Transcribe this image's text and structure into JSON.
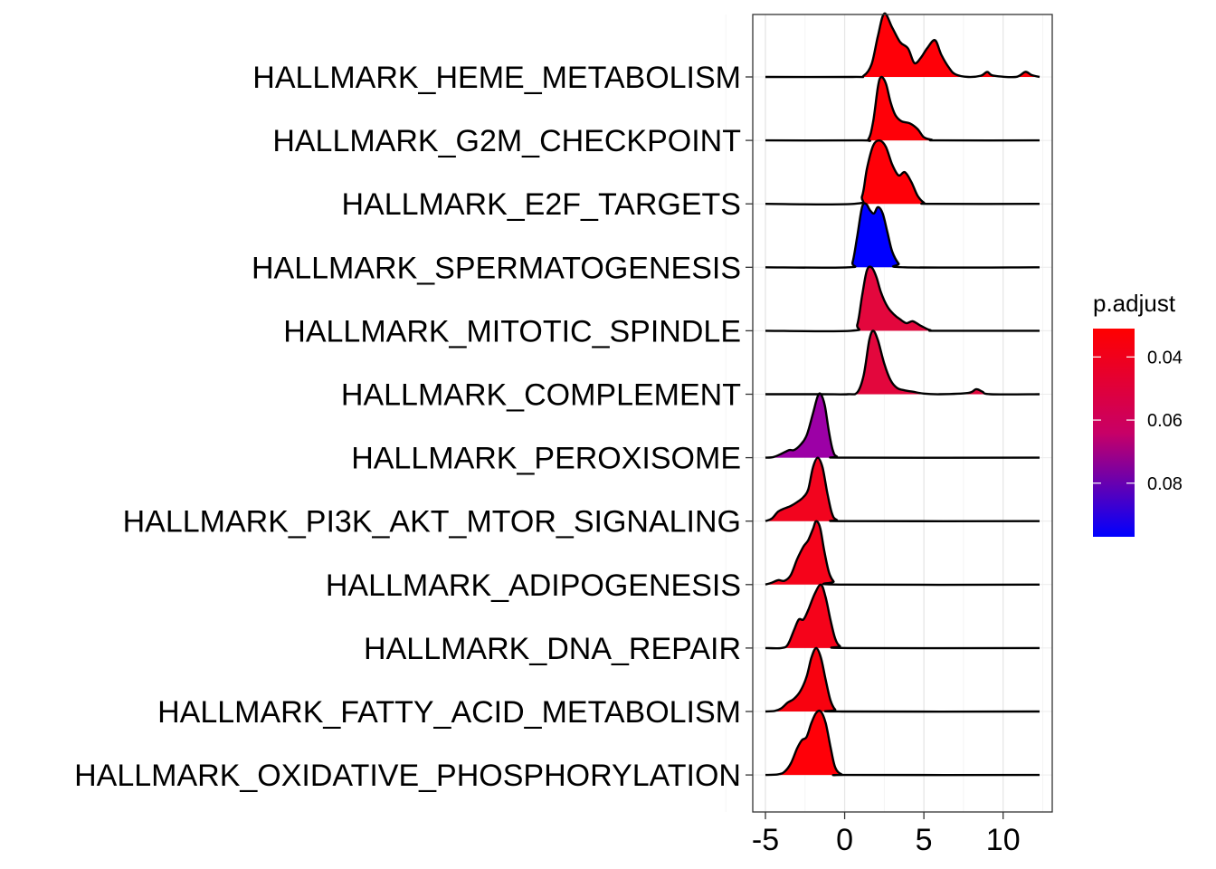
{
  "chart_data": {
    "type": "ridgeline",
    "x_ticks": [
      -5,
      0,
      5,
      10
    ],
    "xlim": [
      -5.8,
      13.1
    ],
    "series": [
      {
        "name": "HALLMARK_HEME_METABOLISM",
        "p_adjust": 0.032,
        "color": "#FF0008",
        "density": [
          [
            -5,
            0
          ],
          [
            0.5,
            0
          ],
          [
            1.2,
            0.02
          ],
          [
            1.7,
            0.2
          ],
          [
            2.1,
            0.65
          ],
          [
            2.5,
            1.0
          ],
          [
            3.0,
            0.78
          ],
          [
            3.5,
            0.55
          ],
          [
            4.0,
            0.45
          ],
          [
            4.4,
            0.22
          ],
          [
            4.8,
            0.3
          ],
          [
            5.2,
            0.45
          ],
          [
            5.7,
            0.58
          ],
          [
            6.1,
            0.35
          ],
          [
            6.6,
            0.14
          ],
          [
            7.0,
            0.04
          ],
          [
            7.8,
            0.0
          ],
          [
            8.6,
            0.02
          ],
          [
            9.0,
            0.08
          ],
          [
            9.4,
            0.02
          ],
          [
            10.8,
            0.0
          ],
          [
            11.4,
            0.08
          ],
          [
            11.8,
            0.03
          ],
          [
            12.3,
            0
          ]
        ]
      },
      {
        "name": "HALLMARK_G2M_CHECKPOINT",
        "p_adjust": 0.031,
        "color": "#FF0008",
        "density": [
          [
            -5,
            0
          ],
          [
            1.0,
            0
          ],
          [
            1.5,
            0.02
          ],
          [
            1.8,
            0.3
          ],
          [
            2.1,
            0.85
          ],
          [
            2.3,
            1.0
          ],
          [
            2.6,
            0.9
          ],
          [
            2.9,
            0.6
          ],
          [
            3.2,
            0.4
          ],
          [
            3.6,
            0.3
          ],
          [
            4.1,
            0.27
          ],
          [
            4.6,
            0.18
          ],
          [
            5.0,
            0.05
          ],
          [
            5.5,
            0.01
          ],
          [
            6.0,
            0
          ],
          [
            12.3,
            0
          ]
        ]
      },
      {
        "name": "HALLMARK_E2F_TARGETS",
        "p_adjust": 0.031,
        "color": "#FF0008",
        "density": [
          [
            -5,
            0
          ],
          [
            0.6,
            0
          ],
          [
            1.1,
            0.12
          ],
          [
            1.4,
            0.55
          ],
          [
            1.8,
            0.92
          ],
          [
            2.2,
            1.0
          ],
          [
            2.6,
            0.9
          ],
          [
            3.0,
            0.62
          ],
          [
            3.4,
            0.45
          ],
          [
            3.8,
            0.5
          ],
          [
            4.2,
            0.35
          ],
          [
            4.6,
            0.13
          ],
          [
            5.0,
            0.02
          ],
          [
            5.5,
            0
          ],
          [
            12.3,
            0
          ]
        ]
      },
      {
        "name": "HALLMARK_SPERMATOGENESIS",
        "p_adjust": 0.092,
        "color": "#0000FF",
        "density": [
          [
            -5,
            0
          ],
          [
            0.2,
            0
          ],
          [
            0.5,
            0.08
          ],
          [
            0.8,
            0.5
          ],
          [
            1.1,
            0.95
          ],
          [
            1.35,
            1.0
          ],
          [
            1.6,
            0.9
          ],
          [
            1.85,
            0.85
          ],
          [
            2.1,
            0.95
          ],
          [
            2.4,
            0.85
          ],
          [
            2.7,
            0.55
          ],
          [
            3.0,
            0.25
          ],
          [
            3.4,
            0.06
          ],
          [
            3.8,
            0
          ],
          [
            12.3,
            0
          ]
        ]
      },
      {
        "name": "HALLMARK_MITOTIC_SPINDLE",
        "p_adjust": 0.046,
        "color": "#E3073D",
        "density": [
          [
            -5,
            0
          ],
          [
            0.4,
            0
          ],
          [
            0.8,
            0.1
          ],
          [
            1.1,
            0.55
          ],
          [
            1.4,
            0.95
          ],
          [
            1.7,
            1.0
          ],
          [
            2.0,
            0.85
          ],
          [
            2.3,
            0.6
          ],
          [
            2.7,
            0.38
          ],
          [
            3.1,
            0.26
          ],
          [
            3.5,
            0.18
          ],
          [
            3.9,
            0.12
          ],
          [
            4.3,
            0.15
          ],
          [
            4.8,
            0.08
          ],
          [
            5.4,
            0.01
          ],
          [
            6.0,
            0
          ],
          [
            12.3,
            0
          ]
        ]
      },
      {
        "name": "HALLMARK_COMPLEMENT",
        "p_adjust": 0.046,
        "color": "#E3073D",
        "density": [
          [
            -5,
            0
          ],
          [
            -1.5,
            0
          ],
          [
            0.2,
            0
          ],
          [
            0.8,
            0.03
          ],
          [
            1.2,
            0.3
          ],
          [
            1.55,
            0.85
          ],
          [
            1.8,
            1.0
          ],
          [
            2.1,
            0.85
          ],
          [
            2.5,
            0.48
          ],
          [
            2.9,
            0.22
          ],
          [
            3.3,
            0.1
          ],
          [
            3.8,
            0.06
          ],
          [
            4.3,
            0.04
          ],
          [
            5.0,
            0.01
          ],
          [
            6.0,
            0
          ],
          [
            7.8,
            0.02
          ],
          [
            8.3,
            0.08
          ],
          [
            8.7,
            0.04
          ],
          [
            9.2,
            0
          ],
          [
            12.3,
            0
          ]
        ]
      },
      {
        "name": "HALLMARK_PEROXISOME",
        "p_adjust": 0.068,
        "color": "#9C00A6",
        "density": [
          [
            -5,
            0
          ],
          [
            -4.5,
            0.01
          ],
          [
            -4.0,
            0.06
          ],
          [
            -3.5,
            0.12
          ],
          [
            -3.2,
            0.12
          ],
          [
            -2.8,
            0.2
          ],
          [
            -2.4,
            0.35
          ],
          [
            -2.0,
            0.7
          ],
          [
            -1.7,
            0.97
          ],
          [
            -1.5,
            1.0
          ],
          [
            -1.25,
            0.82
          ],
          [
            -1.0,
            0.42
          ],
          [
            -0.75,
            0.12
          ],
          [
            -0.5,
            0.02
          ],
          [
            0.2,
            0
          ],
          [
            12.3,
            0
          ]
        ]
      },
      {
        "name": "HALLMARK_PI3K_AKT_MTOR_SIGNALING",
        "p_adjust": 0.038,
        "color": "#F2041E",
        "density": [
          [
            -5,
            0
          ],
          [
            -4.6,
            0.04
          ],
          [
            -4.2,
            0.15
          ],
          [
            -3.8,
            0.2
          ],
          [
            -3.4,
            0.24
          ],
          [
            -3.0,
            0.3
          ],
          [
            -2.6,
            0.38
          ],
          [
            -2.3,
            0.5
          ],
          [
            -2.0,
            0.85
          ],
          [
            -1.7,
            1.0
          ],
          [
            -1.4,
            0.85
          ],
          [
            -1.1,
            0.45
          ],
          [
            -0.8,
            0.12
          ],
          [
            -0.5,
            0.02
          ],
          [
            0.2,
            0
          ],
          [
            12.3,
            0
          ]
        ]
      },
      {
        "name": "HALLMARK_ADIPOGENESIS",
        "p_adjust": 0.036,
        "color": "#F5031A",
        "density": [
          [
            -5,
            0
          ],
          [
            -4.6,
            0.03
          ],
          [
            -4.2,
            0.07
          ],
          [
            -3.8,
            0.06
          ],
          [
            -3.4,
            0.15
          ],
          [
            -3.0,
            0.4
          ],
          [
            -2.6,
            0.6
          ],
          [
            -2.3,
            0.7
          ],
          [
            -2.0,
            0.88
          ],
          [
            -1.8,
            1.0
          ],
          [
            -1.55,
            0.9
          ],
          [
            -1.3,
            0.55
          ],
          [
            -1.0,
            0.2
          ],
          [
            -0.7,
            0.05
          ],
          [
            -0.3,
            0
          ],
          [
            12.3,
            0
          ]
        ]
      },
      {
        "name": "HALLMARK_DNA_REPAIR",
        "p_adjust": 0.035,
        "color": "#F5031A",
        "density": [
          [
            -5,
            0
          ],
          [
            -4.0,
            0
          ],
          [
            -3.6,
            0.05
          ],
          [
            -3.2,
            0.28
          ],
          [
            -2.9,
            0.45
          ],
          [
            -2.6,
            0.45
          ],
          [
            -2.3,
            0.6
          ],
          [
            -1.9,
            0.85
          ],
          [
            -1.5,
            1.0
          ],
          [
            -1.2,
            0.8
          ],
          [
            -0.9,
            0.45
          ],
          [
            -0.6,
            0.15
          ],
          [
            -0.3,
            0.03
          ],
          [
            0.2,
            0
          ],
          [
            12.3,
            0
          ]
        ]
      },
      {
        "name": "HALLMARK_FATTY_ACID_METABOLISM",
        "p_adjust": 0.034,
        "color": "#F8020F",
        "density": [
          [
            -5,
            0
          ],
          [
            -4.4,
            0.01
          ],
          [
            -4.0,
            0.05
          ],
          [
            -3.6,
            0.14
          ],
          [
            -3.2,
            0.2
          ],
          [
            -2.8,
            0.32
          ],
          [
            -2.4,
            0.55
          ],
          [
            -2.1,
            0.85
          ],
          [
            -1.8,
            1.0
          ],
          [
            -1.5,
            0.85
          ],
          [
            -1.2,
            0.5
          ],
          [
            -0.9,
            0.18
          ],
          [
            -0.6,
            0.03
          ],
          [
            -0.2,
            0
          ],
          [
            12.3,
            0
          ]
        ]
      },
      {
        "name": "HALLMARK_OXIDATIVE_PHOSPHORYLATION",
        "p_adjust": 0.031,
        "color": "#FF0008",
        "density": [
          [
            -5,
            0
          ],
          [
            -4.2,
            0.01
          ],
          [
            -3.8,
            0.05
          ],
          [
            -3.4,
            0.18
          ],
          [
            -3.0,
            0.42
          ],
          [
            -2.7,
            0.55
          ],
          [
            -2.4,
            0.6
          ],
          [
            -2.1,
            0.82
          ],
          [
            -1.8,
            0.98
          ],
          [
            -1.5,
            1.0
          ],
          [
            -1.2,
            0.82
          ],
          [
            -0.9,
            0.45
          ],
          [
            -0.6,
            0.12
          ],
          [
            -0.2,
            0.01
          ],
          [
            0.3,
            0
          ],
          [
            12.3,
            0
          ]
        ]
      }
    ],
    "legend": {
      "title": "p.adjust",
      "ticks": [
        0.04,
        0.06,
        0.08
      ],
      "range": [
        0.031,
        0.097
      ],
      "gradient": [
        "#FF0000",
        "#0000FF"
      ],
      "placement": "right"
    },
    "panel_border": true,
    "grid": true
  }
}
